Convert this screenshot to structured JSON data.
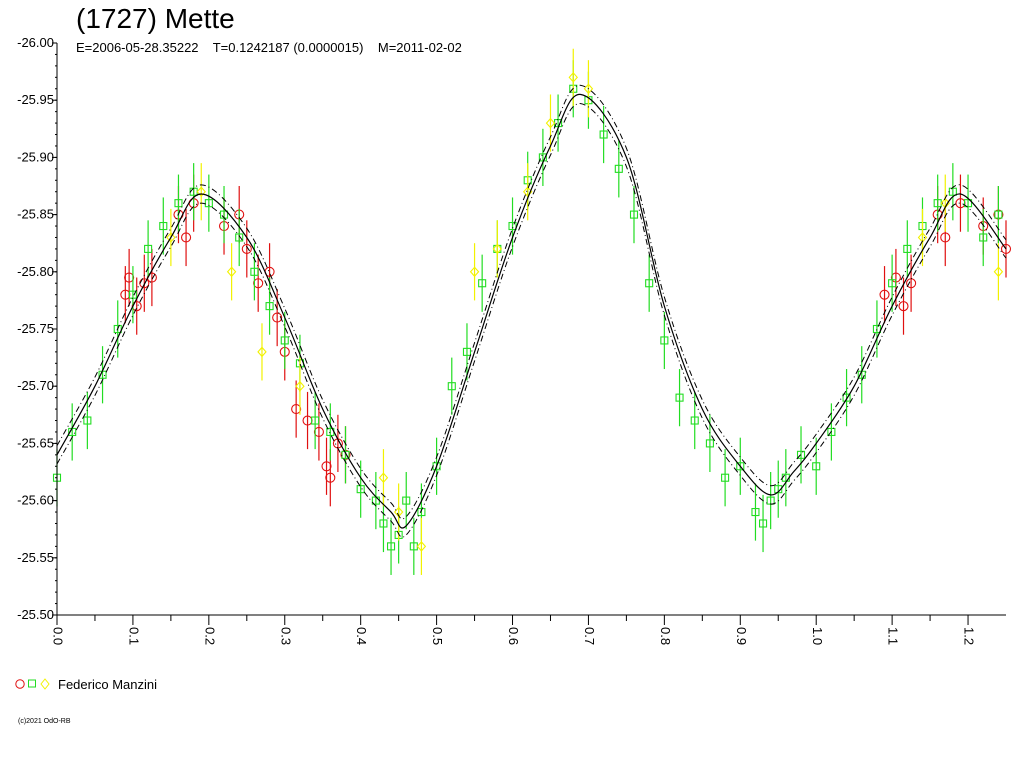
{
  "chart": {
    "title": "(1727) Mette",
    "params": "E=2006-05-28.35222    T=0.1242187 (0.0000015)    M=2011-02-02",
    "copyright": "(c)2021 OdO-RB"
  },
  "legend": {
    "label": "Federico Manzini",
    "markers": [
      "circle",
      "square",
      "diamond"
    ]
  },
  "colors": {
    "red": "#e01010",
    "green": "#22dd22",
    "yellow": "#f2f200",
    "fit": "#000000",
    "axis": "#000000"
  },
  "chart_data": {
    "type": "scatter",
    "title": "(1727) Mette",
    "xlabel": "",
    "ylabel": "",
    "xlim": [
      0.0,
      1.25
    ],
    "ylim": [
      -26.0,
      -25.5
    ],
    "y_inverted": true,
    "x_tick_labels": [
      "0.0",
      "0.1",
      "0.2",
      "0.3",
      "0.4",
      "0.5",
      "0.6",
      "0.7",
      "0.8",
      "0.9",
      "1.0",
      "1.1",
      "1.2"
    ],
    "y_tick_labels": [
      "-26.00",
      "-25.95",
      "-25.90",
      "-25.85",
      "-25.80",
      "-25.75",
      "-25.70",
      "-25.65",
      "-25.60",
      "-25.55",
      "-25.50"
    ],
    "fit_curve": {
      "style": "solid with dash-dot error bounds",
      "error_band": 0.008,
      "x": [
        0.0,
        0.05,
        0.1,
        0.15,
        0.19,
        0.25,
        0.3,
        0.35,
        0.4,
        0.44,
        0.46,
        0.5,
        0.55,
        0.6,
        0.65,
        0.69,
        0.75,
        0.8,
        0.85,
        0.9,
        0.94,
        0.97,
        1.0,
        1.05,
        1.1,
        1.15,
        1.19,
        1.25
      ],
      "y": [
        -25.64,
        -25.7,
        -25.77,
        -25.83,
        -25.868,
        -25.83,
        -25.76,
        -25.68,
        -25.62,
        -25.59,
        -25.578,
        -25.63,
        -25.73,
        -25.83,
        -25.91,
        -25.955,
        -25.9,
        -25.77,
        -25.68,
        -25.63,
        -25.605,
        -25.625,
        -25.65,
        -25.7,
        -25.77,
        -25.83,
        -25.868,
        -25.82
      ]
    },
    "series": [
      {
        "marker": "circle",
        "color": "#e01010",
        "x": [
          0.09,
          0.095,
          0.105,
          0.115,
          0.125,
          0.16,
          0.17,
          0.18,
          0.22,
          0.24,
          0.25,
          0.265,
          0.28,
          0.29,
          0.3,
          0.315,
          0.33,
          0.345,
          0.355,
          0.36,
          0.37,
          0.38,
          1.09,
          1.105,
          1.115,
          1.125,
          1.16,
          1.17,
          1.19,
          1.22,
          1.24,
          1.25
        ],
        "y": [
          -25.78,
          -25.795,
          -25.77,
          -25.79,
          -25.795,
          -25.85,
          -25.83,
          -25.86,
          -25.84,
          -25.85,
          -25.82,
          -25.79,
          -25.8,
          -25.76,
          -25.73,
          -25.68,
          -25.67,
          -25.66,
          -25.63,
          -25.62,
          -25.65,
          -25.64,
          -25.78,
          -25.795,
          -25.77,
          -25.79,
          -25.85,
          -25.83,
          -25.86,
          -25.84,
          -25.85,
          -25.82
        ]
      },
      {
        "marker": "square",
        "color": "#22dd22",
        "x": [
          0.0,
          0.02,
          0.04,
          0.06,
          0.08,
          0.1,
          0.12,
          0.14,
          0.16,
          0.18,
          0.2,
          0.22,
          0.24,
          0.26,
          0.28,
          0.3,
          0.32,
          0.34,
          0.36,
          0.38,
          0.4,
          0.42,
          0.43,
          0.44,
          0.45,
          0.46,
          0.47,
          0.48,
          0.5,
          0.52,
          0.54,
          0.56,
          0.58,
          0.6,
          0.62,
          0.64,
          0.66,
          0.68,
          0.7,
          0.72,
          0.74,
          0.76,
          0.78,
          0.8,
          0.82,
          0.84,
          0.86,
          0.88,
          0.9,
          0.92,
          0.93,
          0.94,
          0.95,
          0.96,
          0.98,
          1.0,
          1.02,
          1.04,
          1.06,
          1.08,
          1.1,
          1.12,
          1.14,
          1.16,
          1.18,
          1.2,
          1.22,
          1.24
        ],
        "y": [
          -25.62,
          -25.66,
          -25.67,
          -25.71,
          -25.75,
          -25.78,
          -25.82,
          -25.84,
          -25.86,
          -25.87,
          -25.86,
          -25.85,
          -25.83,
          -25.8,
          -25.77,
          -25.74,
          -25.72,
          -25.67,
          -25.66,
          -25.64,
          -25.61,
          -25.6,
          -25.58,
          -25.56,
          -25.57,
          -25.6,
          -25.56,
          -25.59,
          -25.63,
          -25.7,
          -25.73,
          -25.79,
          -25.82,
          -25.84,
          -25.88,
          -25.9,
          -25.93,
          -25.96,
          -25.95,
          -25.92,
          -25.89,
          -25.85,
          -25.79,
          -25.74,
          -25.69,
          -25.67,
          -25.65,
          -25.62,
          -25.63,
          -25.59,
          -25.58,
          -25.6,
          -25.61,
          -25.62,
          -25.64,
          -25.63,
          -25.66,
          -25.69,
          -25.71,
          -25.75,
          -25.79,
          -25.82,
          -25.84,
          -25.86,
          -25.87,
          -25.86,
          -25.83,
          -25.85
        ]
      },
      {
        "marker": "diamond",
        "color": "#f2f200",
        "x": [
          0.15,
          0.19,
          0.23,
          0.27,
          0.32,
          0.43,
          0.45,
          0.48,
          0.55,
          0.58,
          0.62,
          0.65,
          0.68,
          0.7,
          1.14,
          1.17,
          1.24
        ],
        "y": [
          -25.83,
          -25.87,
          -25.8,
          -25.73,
          -25.7,
          -25.62,
          -25.59,
          -25.56,
          -25.8,
          -25.82,
          -25.87,
          -25.93,
          -25.97,
          -25.96,
          -25.83,
          -25.86,
          -25.8
        ]
      }
    ]
  }
}
